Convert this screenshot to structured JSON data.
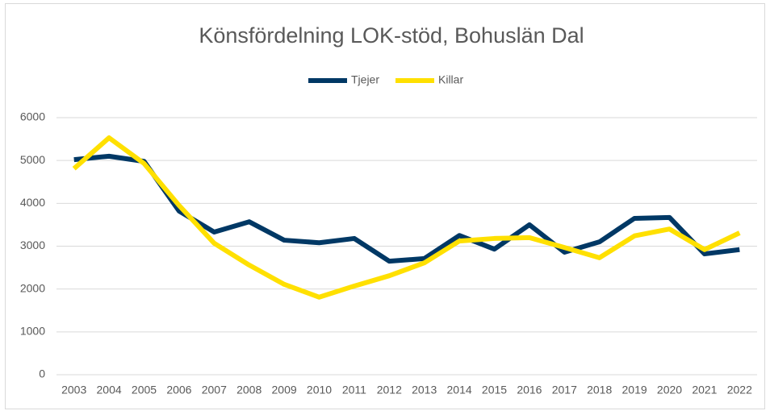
{
  "chart_data": {
    "type": "line",
    "title": "Könsfördelning LOK-stöd, Bohuslän Dal",
    "categories": [
      "2003",
      "2004",
      "2005",
      "2006",
      "2007",
      "2008",
      "2009",
      "2010",
      "2011",
      "2012",
      "2013",
      "2014",
      "2015",
      "2016",
      "2017",
      "2018",
      "2019",
      "2020",
      "2021",
      "2022"
    ],
    "series": [
      {
        "name": "Tjejer",
        "color": "#003865",
        "values": [
          5020,
          5100,
          4980,
          3820,
          3330,
          3570,
          3140,
          3080,
          3180,
          2650,
          2710,
          3250,
          2930,
          3500,
          2860,
          3100,
          3650,
          3670,
          2820,
          2920
        ]
      },
      {
        "name": "Killar",
        "color": "#ffe000",
        "values": [
          4810,
          5530,
          4930,
          3950,
          3070,
          2560,
          2110,
          1810,
          2070,
          2310,
          2610,
          3120,
          3180,
          3200,
          2970,
          2730,
          3240,
          3400,
          2920,
          3310
        ]
      }
    ],
    "ylim": [
      0,
      6000
    ],
    "yticks": [
      0,
      1000,
      2000,
      3000,
      4000,
      5000,
      6000
    ],
    "grid": true,
    "legend": "top"
  }
}
